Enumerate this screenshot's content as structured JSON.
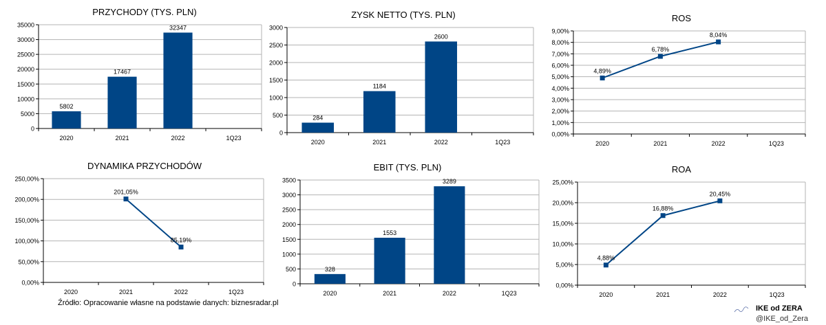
{
  "source_note": "Źródło: Opracowanie własne na podstawie danych: biznesradar.pl",
  "brand": {
    "name": "IKE od ZERA",
    "handle": "@IKE_od_Zera"
  },
  "colors": {
    "series": "#004586",
    "grid": "#b3b3b3",
    "axis": "#000000"
  },
  "chart_data": [
    {
      "type": "bar",
      "title": "PRZYCHODY (TYS. PLN)",
      "categories": [
        "2020",
        "2021",
        "2022",
        "1Q23"
      ],
      "values": [
        5802,
        17467,
        32347,
        null
      ],
      "data_labels": [
        "5802",
        "17467",
        "32347",
        ""
      ],
      "ylim": [
        0,
        35000
      ],
      "yticks": [
        0,
        5000,
        10000,
        15000,
        20000,
        25000,
        30000,
        35000
      ],
      "ytick_labels": [
        "0",
        "5000",
        "10000",
        "15000",
        "20000",
        "25000",
        "30000",
        "35000"
      ],
      "grid": true
    },
    {
      "type": "bar",
      "title": "ZYSK NETTO (TYS. PLN)",
      "categories": [
        "2020",
        "2021",
        "2022",
        "1Q23"
      ],
      "values": [
        284,
        1184,
        2600,
        null
      ],
      "data_labels": [
        "284",
        "1184",
        "2600",
        ""
      ],
      "ylim": [
        0,
        3000
      ],
      "yticks": [
        0,
        500,
        1000,
        1500,
        2000,
        2500,
        3000
      ],
      "ytick_labels": [
        "0",
        "500",
        "1000",
        "1500",
        "2000",
        "2500",
        "3000"
      ],
      "grid": true
    },
    {
      "type": "line",
      "title": "ROS",
      "categories": [
        "2020",
        "2021",
        "2022",
        "1Q23"
      ],
      "values": [
        4.89,
        6.78,
        8.04,
        null
      ],
      "data_labels": [
        "4,89%",
        "6,78%",
        "8,04%",
        ""
      ],
      "ylim": [
        0,
        9
      ],
      "yticks": [
        0,
        1,
        2,
        3,
        4,
        5,
        6,
        7,
        8,
        9
      ],
      "ytick_labels": [
        "0,00%",
        "1,00%",
        "2,00%",
        "3,00%",
        "4,00%",
        "5,00%",
        "6,00%",
        "7,00%",
        "8,00%",
        "9,00%"
      ],
      "grid": true
    },
    {
      "type": "line",
      "title": "DYNAMIKA PRZYCHODÓW",
      "categories": [
        "2020",
        "2021",
        "2022",
        "1Q23"
      ],
      "values": [
        null,
        201.05,
        85.19,
        null
      ],
      "data_labels": [
        "",
        "201,05%",
        "85,19%",
        ""
      ],
      "ylim": [
        0,
        250
      ],
      "yticks": [
        0,
        50,
        100,
        150,
        200,
        250
      ],
      "ytick_labels": [
        "0,00%",
        "50,00%",
        "100,00%",
        "150,00%",
        "200,00%",
        "250,00%"
      ],
      "grid": true
    },
    {
      "type": "bar",
      "title": "EBIT (TYS. PLN)",
      "categories": [
        "2020",
        "2021",
        "2022",
        "1Q23"
      ],
      "values": [
        328,
        1553,
        3289,
        null
      ],
      "data_labels": [
        "328",
        "1553",
        "3289",
        ""
      ],
      "ylim": [
        0,
        3500
      ],
      "yticks": [
        0,
        500,
        1000,
        1500,
        2000,
        2500,
        3000,
        3500
      ],
      "ytick_labels": [
        "0",
        "500",
        "1000",
        "1500",
        "2000",
        "2500",
        "3000",
        "3500"
      ],
      "grid": true
    },
    {
      "type": "line",
      "title": "ROA",
      "categories": [
        "2020",
        "2021",
        "2022",
        "1Q23"
      ],
      "values": [
        4.88,
        16.88,
        20.45,
        null
      ],
      "data_labels": [
        "4,88%",
        "16,88%",
        "20,45%",
        ""
      ],
      "ylim": [
        0,
        25
      ],
      "yticks": [
        0,
        5,
        10,
        15,
        20,
        25
      ],
      "ytick_labels": [
        "0,00%",
        "5,00%",
        "10,00%",
        "15,00%",
        "20,00%",
        "25,00%"
      ],
      "grid": true
    }
  ]
}
